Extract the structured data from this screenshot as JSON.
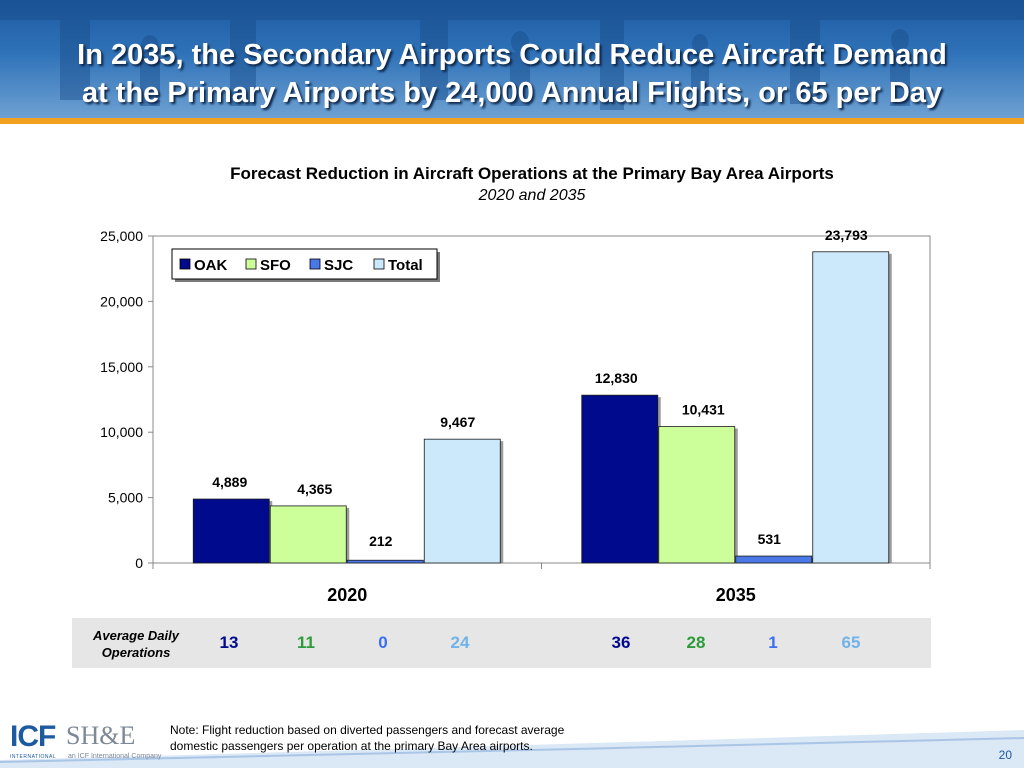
{
  "header": {
    "title_line1": "In 2035, the Secondary  Airports Could Reduce Aircraft Demand",
    "title_line2": "at the Primary Airports by 24,000 Annual Flights, or 65 per Day"
  },
  "colors": {
    "oak": "#000a8c",
    "sfo": "#ccff99",
    "sjc": "#4a78e6",
    "total": "#cce8fb",
    "accent": "#f2a11f"
  },
  "chart_data": {
    "type": "bar",
    "title": "Forecast Reduction in Aircraft Operations at the Primary Bay Area Airports",
    "subtitle": "2020 and 2035",
    "categories": [
      "2020",
      "2035"
    ],
    "series": [
      {
        "name": "OAK",
        "values": [
          4889,
          12830
        ],
        "labels": [
          "4,889",
          "12,830"
        ]
      },
      {
        "name": "SFO",
        "values": [
          4365,
          10431
        ],
        "labels": [
          "4,365",
          "10,431"
        ]
      },
      {
        "name": "SJC",
        "values": [
          212,
          531
        ],
        "labels": [
          "212",
          "531"
        ]
      },
      {
        "name": "Total",
        "values": [
          9467,
          23793
        ],
        "labels": [
          "9,467",
          "23,793"
        ]
      }
    ],
    "ylim": [
      0,
      25000
    ],
    "yticks": [
      0,
      5000,
      10000,
      15000,
      20000,
      25000
    ],
    "ytick_labels": [
      "0",
      "5,000",
      "10,000",
      "15,000",
      "20,000",
      "25,000"
    ],
    "legend": "top-left",
    "grid": false
  },
  "average_daily": {
    "label": "Average Daily Operations",
    "values_2020": [
      13,
      11,
      0,
      24
    ],
    "values_2035": [
      36,
      28,
      1,
      65
    ]
  },
  "footer": {
    "footnote": "Note: Flight reduction based on diverted passengers and forecast average domestic passengers per operation at the primary Bay Area airports.",
    "page_number": "20",
    "logo_icf": "ICF",
    "logo_icf_sub": "INTERNATIONAL",
    "logo_she": "SH&E",
    "logo_she_sub": "an ICF International Company"
  }
}
